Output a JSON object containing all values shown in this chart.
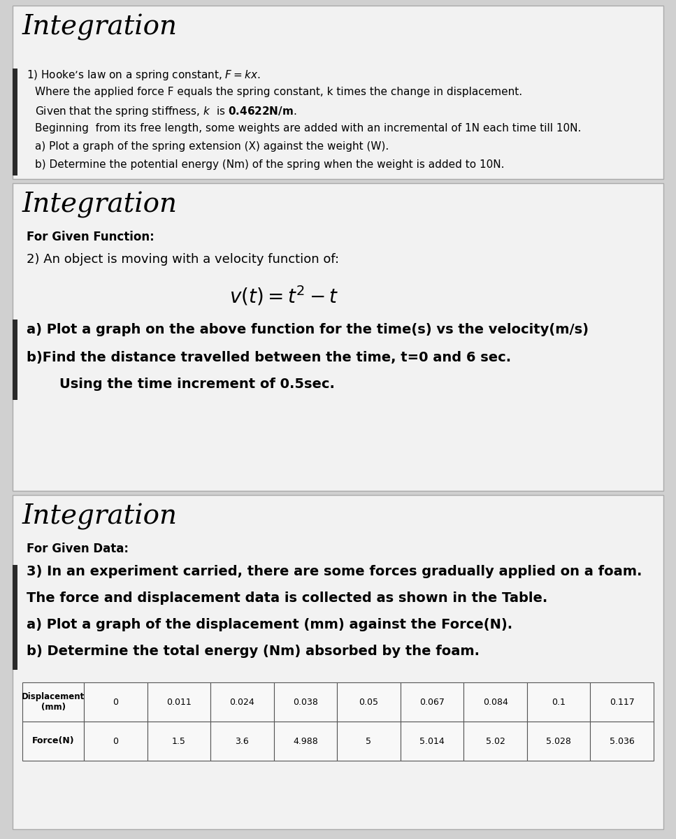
{
  "section1": {
    "title": "Integration",
    "line1": "1) Hooke’s law on a spring constant, ",
    "line1_bold": "F = kx",
    "line2": "    Where the applied force F equals the spring constant, k times the change in displacement.",
    "line3_pre": "    Given that the spring stiffness, ",
    "line3_k": "k",
    "line3_post": " is ",
    "line3_bold": "0.4622N/m",
    "line3_dot": ".",
    "line4": "    Beginning  from its free length, some weights are added with an incremental of 1N each time till 10N.",
    "line5": "    a) Plot a graph of the spring extension (X) against the weight (W).",
    "line6": "    b) Determine the potential energy (Nm) of the spring when the weight is added to 10N."
  },
  "section2": {
    "title": "Integration",
    "subtitle": "For Given Function:",
    "body1": "2) An object is moving with a velocity function of:",
    "formula": "$v(t)=t^{2}-t$",
    "linea": "a) Plot a graph on the above function for the time(s) vs the velocity(m/s)",
    "lineb": "b)Find the distance travelled between the time, t=0 and 6 sec.",
    "linec": "    Using the time increment of 0.5sec."
  },
  "section3": {
    "title": "Integration",
    "subtitle": "For Given Data:",
    "body1": "3) In an experiment carried, there are some forces gradually applied on a foam.",
    "body2": "The force and displacement data is collected as shown in the Table.",
    "body3": "a) Plot a graph of the displacement (mm) against the Force(N).",
    "body4": "b) Determine the total energy (Nm) absorbed by the foam.",
    "table_row1_label": "Displacement\n(mm)",
    "table_row2_label": "Force(N)",
    "table_row1_vals": [
      "0",
      "0.011",
      "0.024",
      "0.038",
      "0.05",
      "0.067",
      "0.084",
      "0.1",
      "0.117"
    ],
    "table_row2_vals": [
      "0",
      "1.5",
      "3.6",
      "4.988",
      "5",
      "5.014",
      "5.02",
      "5.028",
      "5.036"
    ]
  },
  "outer_bg": "#d0d0d0",
  "panel_bg": "#f2f2f2",
  "accent_bar_color": "#2a2a2a",
  "title_font_size": 28,
  "subtitle_font_size": 12,
  "body_font_size": 11,
  "formula_font_size": 20,
  "large_body_font_size": 13
}
